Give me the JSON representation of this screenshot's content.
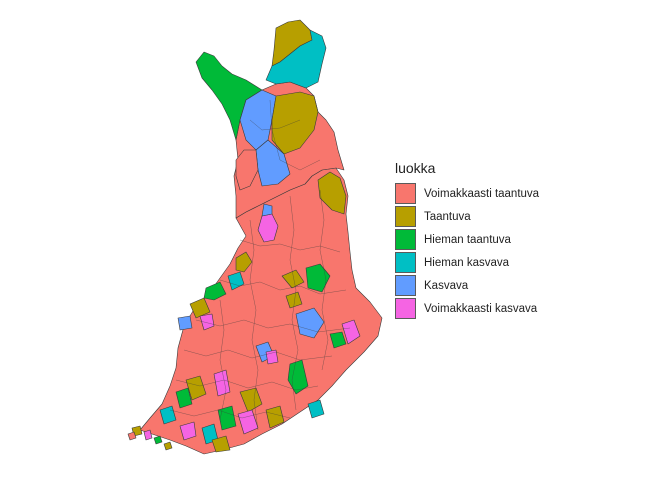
{
  "legend": {
    "title": "luokka",
    "items": [
      {
        "label": "Voimakkaasti taantuva",
        "color": "#F8766D"
      },
      {
        "label": "Taantuva",
        "color": "#B79F00"
      },
      {
        "label": "Hieman taantuva",
        "color": "#00BA38"
      },
      {
        "label": "Hieman kasvava",
        "color": "#00BFC4"
      },
      {
        "label": "Kasvava",
        "color": "#619CFF"
      },
      {
        "label": "Voimakkaasti kasvava",
        "color": "#F564E3"
      }
    ]
  },
  "colors": {
    "border": "#3a3a3a",
    "background": "#ffffff"
  }
}
